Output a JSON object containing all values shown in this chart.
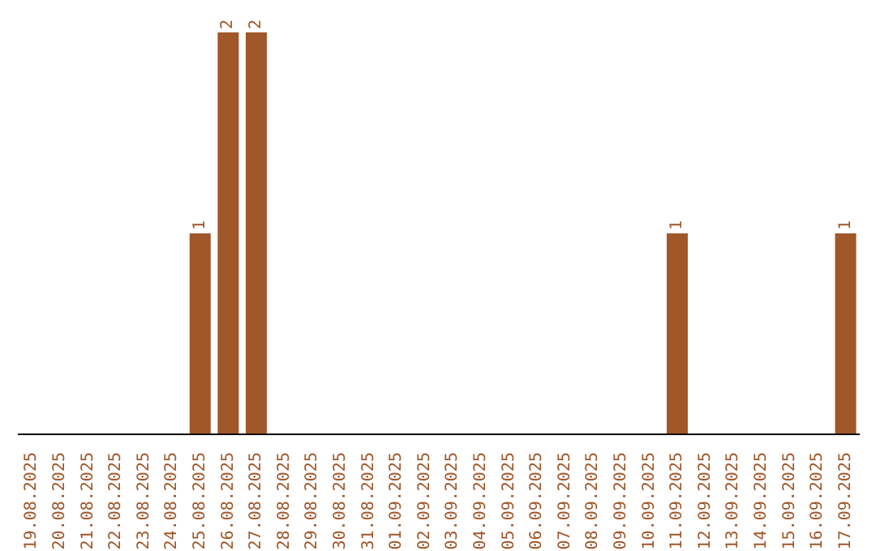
{
  "chart_data": {
    "type": "bar",
    "categories": [
      "19.08.2025",
      "20.08.2025",
      "21.08.2025",
      "22.08.2025",
      "23.08.2025",
      "24.08.2025",
      "25.08.2025",
      "26.08.2025",
      "27.08.2025",
      "28.08.2025",
      "29.08.2025",
      "30.08.2025",
      "31.08.2025",
      "01.09.2025",
      "02.09.2025",
      "03.09.2025",
      "04.09.2025",
      "05.09.2025",
      "06.09.2025",
      "07.09.2025",
      "08.09.2025",
      "09.09.2025",
      "10.09.2025",
      "11.09.2025",
      "12.09.2025",
      "13.09.2025",
      "14.09.2025",
      "15.09.2025",
      "16.09.2025",
      "17.09.2025"
    ],
    "values": [
      0,
      0,
      0,
      0,
      0,
      0,
      1,
      2,
      2,
      0,
      0,
      0,
      0,
      0,
      0,
      0,
      0,
      0,
      0,
      0,
      0,
      0,
      0,
      1,
      0,
      0,
      0,
      0,
      0,
      1
    ],
    "value_labels": [
      null,
      null,
      null,
      null,
      null,
      null,
      "1",
      "2",
      "2",
      null,
      null,
      null,
      null,
      null,
      null,
      null,
      null,
      null,
      null,
      null,
      null,
      null,
      null,
      "1",
      null,
      null,
      null,
      null,
      null,
      "1"
    ],
    "color": "#a0572a",
    "ylim": [
      0,
      2
    ],
    "tick_labels": "x",
    "grid": false,
    "legend": false
  }
}
